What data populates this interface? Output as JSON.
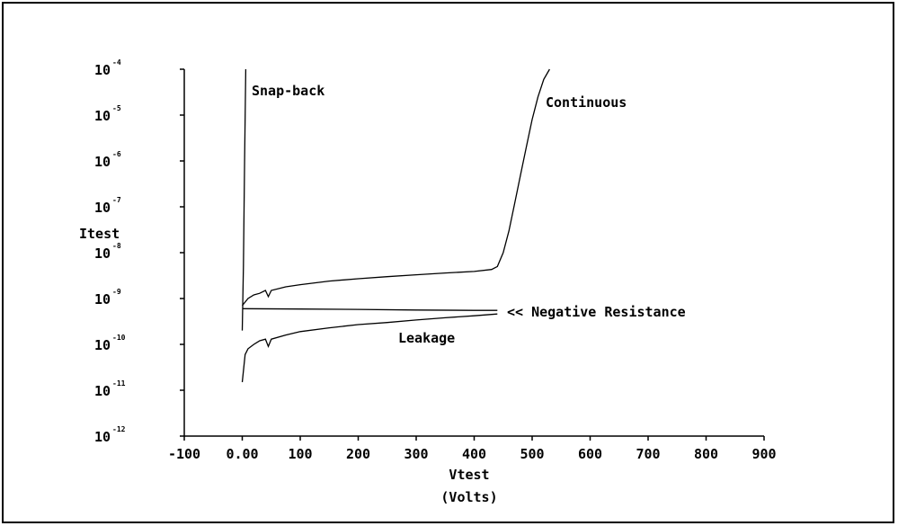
{
  "chart_data": {
    "type": "line",
    "title": "",
    "xlabel": "Vtest",
    "xlabel_units": "(Volts)",
    "ylabel": "Itest",
    "xlim": [
      -100,
      900
    ],
    "ylim": [
      1e-12,
      0.0001
    ],
    "y_scale": "log",
    "x_ticks": [
      {
        "value": -100,
        "label": "-100"
      },
      {
        "value": 0,
        "label": "0.00"
      },
      {
        "value": 100,
        "label": "100"
      },
      {
        "value": 200,
        "label": "200"
      },
      {
        "value": 300,
        "label": "300"
      },
      {
        "value": 400,
        "label": "400"
      },
      {
        "value": 500,
        "label": "500"
      },
      {
        "value": 600,
        "label": "600"
      },
      {
        "value": 700,
        "label": "700"
      },
      {
        "value": 800,
        "label": "800"
      },
      {
        "value": 900,
        "label": "900"
      }
    ],
    "y_ticks": [
      {
        "value": 0.0001,
        "base": "10",
        "exp": "-4"
      },
      {
        "value": 1e-05,
        "base": "10",
        "exp": "-5"
      },
      {
        "value": 1e-06,
        "base": "10",
        "exp": "-6"
      },
      {
        "value": 1e-07,
        "base": "10",
        "exp": "-7"
      },
      {
        "value": 1e-08,
        "base": "10",
        "exp": "-8"
      },
      {
        "value": 1e-09,
        "base": "10",
        "exp": "-9"
      },
      {
        "value": 1e-10,
        "base": "10",
        "exp": "-10"
      },
      {
        "value": 1e-11,
        "base": "10",
        "exp": "-11"
      },
      {
        "value": 1e-12,
        "base": "10",
        "exp": "-12"
      }
    ],
    "grid": false,
    "series": [
      {
        "name": "Snap-back",
        "x": [
          0,
          2,
          4,
          6
        ],
        "y": [
          2e-10,
          5e-09,
          1e-06,
          0.0001
        ]
      },
      {
        "name": "Continuous",
        "x": [
          0,
          10,
          20,
          30,
          40,
          45,
          50,
          75,
          100,
          150,
          200,
          250,
          300,
          350,
          400,
          430,
          440,
          450,
          460,
          470,
          480,
          490,
          500,
          510,
          520,
          530
        ],
        "y": [
          7e-10,
          1e-09,
          1.2e-09,
          1.3e-09,
          1.5e-09,
          1.1e-09,
          1.5e-09,
          1.8e-09,
          2e-09,
          2.4e-09,
          2.7e-09,
          3e-09,
          3.3e-09,
          3.6e-09,
          3.9e-09,
          4.3e-09,
          5e-09,
          1e-08,
          3e-08,
          1.2e-07,
          5e-07,
          2e-06,
          8e-06,
          2.5e-05,
          6e-05,
          0.0001
        ]
      },
      {
        "name": "Negative Resistance",
        "x": [
          0,
          100,
          200,
          300,
          400,
          440
        ],
        "y": [
          6e-10,
          5.9e-10,
          5.8e-10,
          5.6e-10,
          5.5e-10,
          5.5e-10
        ]
      },
      {
        "name": "Leakage",
        "x": [
          0,
          5,
          10,
          20,
          30,
          40,
          45,
          50,
          75,
          100,
          150,
          200,
          250,
          300,
          350,
          400,
          440
        ],
        "y": [
          1.5e-11,
          6e-11,
          8e-11,
          1e-10,
          1.2e-10,
          1.3e-10,
          9e-11,
          1.3e-10,
          1.6e-10,
          1.9e-10,
          2.3e-10,
          2.7e-10,
          3e-10,
          3.4e-10,
          3.8e-10,
          4.2e-10,
          4.6e-10
        ]
      }
    ],
    "annotations": [
      {
        "text": "Snap-back",
        "series": "Snap-back"
      },
      {
        "text": "Continuous",
        "series": "Continuous"
      },
      {
        "text": "<< Negative Resistance",
        "series": "Negative Resistance"
      },
      {
        "text": "Leakage",
        "series": "Leakage"
      }
    ],
    "colors": {
      "line": "#000000",
      "background": "#ffffff"
    }
  }
}
